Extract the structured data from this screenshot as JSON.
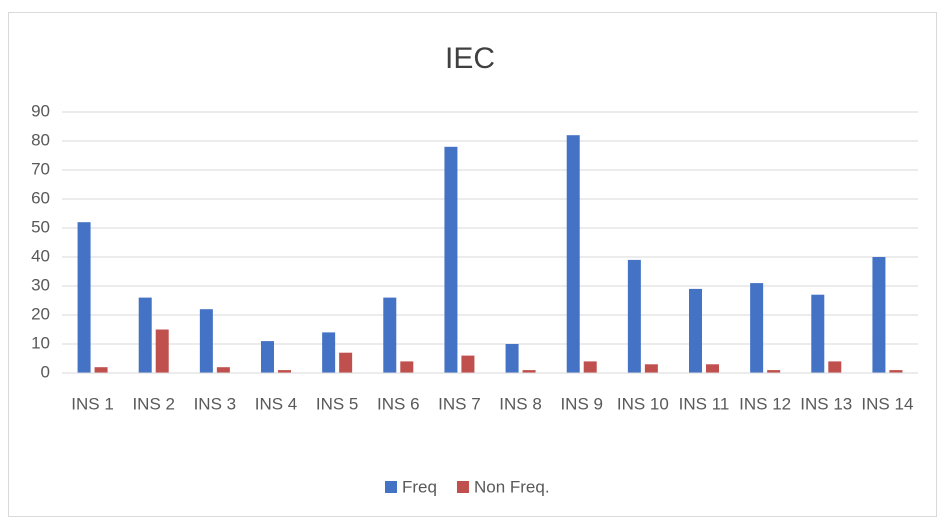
{
  "chart_data": {
    "type": "bar",
    "title": "IEC",
    "categories": [
      "INS 1",
      "INS 2",
      "INS 3",
      "INS 4",
      "INS 5",
      "INS 6",
      "INS 7",
      "INS 8",
      "INS 9",
      "INS 10",
      "INS 11",
      "INS 12",
      "INS 13",
      "INS 14"
    ],
    "series": [
      {
        "name": "Freq",
        "color": "#4472c4",
        "values": [
          52,
          26,
          22,
          11,
          14,
          26,
          78,
          10,
          82,
          39,
          29,
          31,
          27,
          40
        ]
      },
      {
        "name": "Non Freq.",
        "color": "#c0504d",
        "values": [
          2,
          15,
          2,
          1,
          7,
          4,
          6,
          1,
          4,
          3,
          3,
          1,
          4,
          1
        ]
      }
    ],
    "ylim": [
      0,
      90
    ],
    "yticks": [
      0,
      10,
      20,
      30,
      40,
      50,
      60,
      70,
      80,
      90
    ],
    "grid": true,
    "legend": "bottom"
  }
}
